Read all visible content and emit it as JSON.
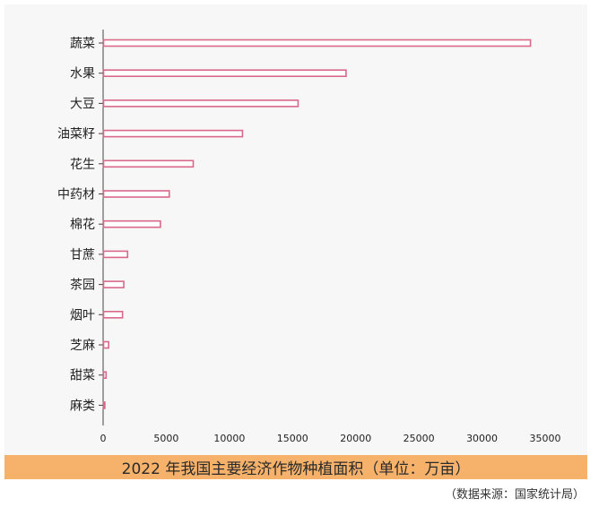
{
  "chart_data": {
    "type": "bar",
    "orientation": "horizontal",
    "categories": [
      "蔬菜",
      "水果",
      "大豆",
      "油菜籽",
      "花生",
      "中药材",
      "棉花",
      "甘蔗",
      "茶园",
      "烟叶",
      "芝麻",
      "甜菜",
      "麻类"
    ],
    "values": [
      33800,
      19200,
      15400,
      11000,
      7100,
      5200,
      4500,
      1900,
      1600,
      1500,
      400,
      200,
      100
    ],
    "xlim": [
      0,
      35000
    ],
    "xticks": [
      0,
      5000,
      10000,
      15000,
      20000,
      25000,
      30000,
      35000
    ],
    "xtick_labels": [
      "0",
      "5000",
      "10000",
      "15000",
      "20000",
      "25000",
      "30000",
      "35000"
    ],
    "title": "2022 年我国主要经济作物种植面积（单位：万亩）",
    "grid": false,
    "legend": "none"
  },
  "source_note": "（数据来源：国家统计局）",
  "colors": {
    "bar_outline": "#d9688a",
    "bar_fill": "#ffffff",
    "chart_background": "#f7f7f7",
    "title_band": "#f6b26b",
    "axis": "#444444"
  }
}
